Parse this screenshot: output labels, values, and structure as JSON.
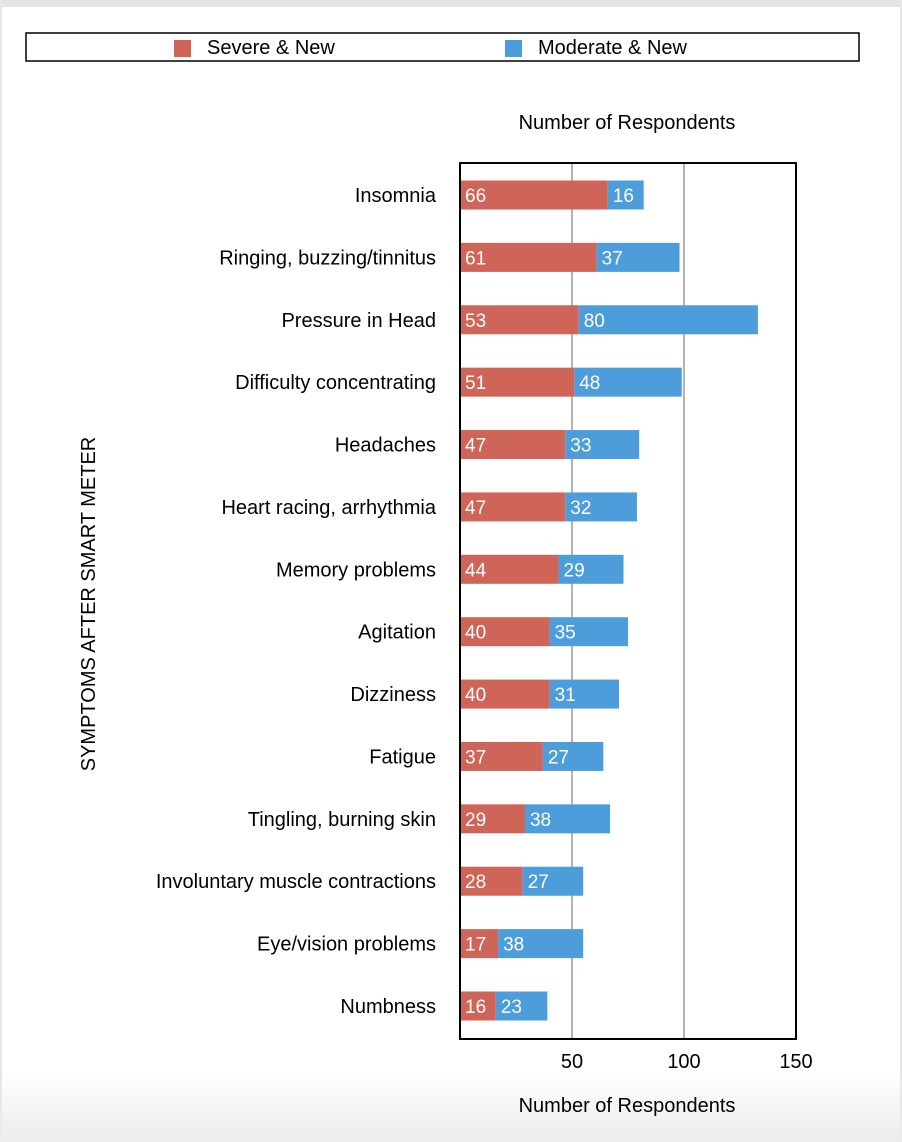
{
  "chart_data": {
    "type": "bar",
    "orientation": "horizontal",
    "stacked": true,
    "title": "Number of Respondents",
    "xlabel": "Number of Respondents",
    "ylabel": "SYMPTOMS AFTER SMART METER",
    "xlim": [
      0,
      150
    ],
    "xticks": [
      50,
      100,
      150
    ],
    "grid": true,
    "legend_position": "top",
    "categories": [
      "Insomnia",
      "Ringing, buzzing/tinnitus",
      "Pressure in Head",
      "Difficulty concentrating",
      "Headaches",
      "Heart racing, arrhythmia",
      "Memory problems",
      "Agitation",
      "Dizziness",
      "Fatigue",
      "Tingling, burning skin",
      "Involuntary muscle contractions",
      "Eye/vision problems",
      "Numbness"
    ],
    "series": [
      {
        "name": "Severe & New",
        "color": "#cf6459",
        "values": [
          66,
          61,
          53,
          51,
          47,
          47,
          44,
          40,
          40,
          37,
          29,
          28,
          17,
          16
        ]
      },
      {
        "name": "Moderate & New",
        "color": "#4d9ddb",
        "values": [
          16,
          37,
          80,
          48,
          33,
          32,
          29,
          35,
          31,
          27,
          38,
          27,
          38,
          23
        ]
      }
    ]
  }
}
